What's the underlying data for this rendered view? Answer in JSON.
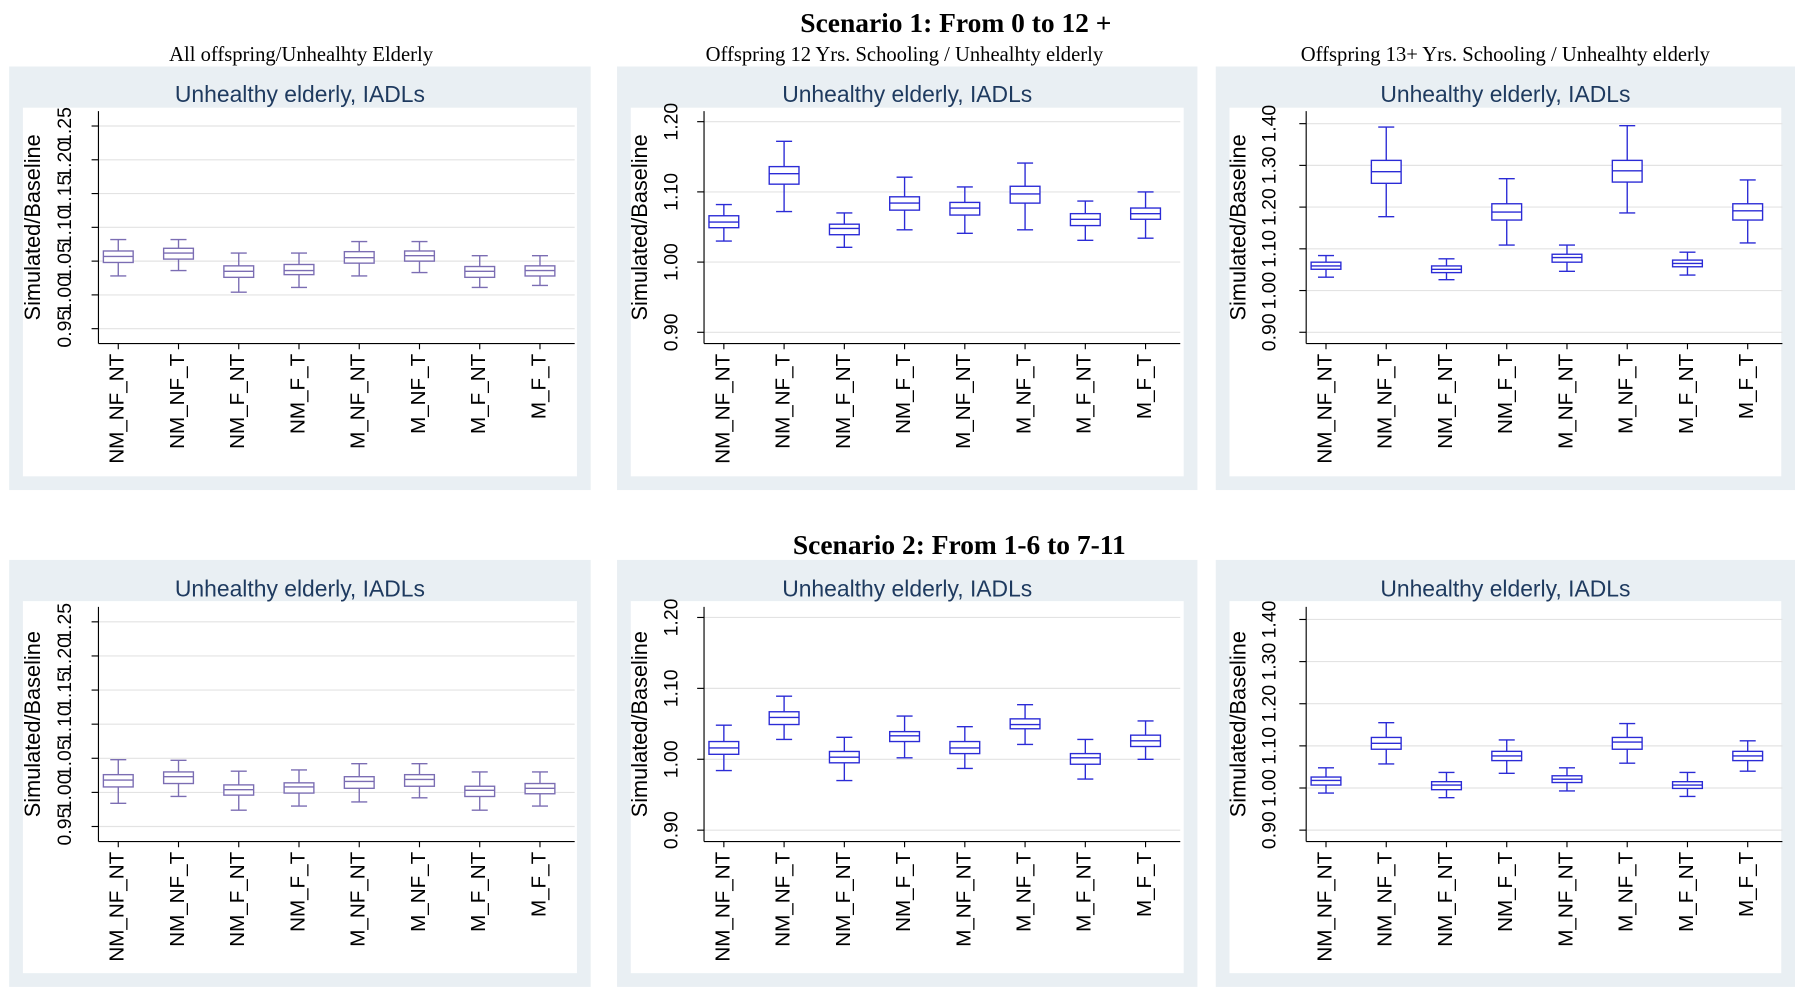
{
  "figure": {
    "scenario_titles": [
      "Scenario 1: From 0 to 12 +",
      "Scenario 2: From 1-6 to 7-11"
    ],
    "column_titles": [
      "All offspring/Unhealhty Elderly",
      "Offspring 12 Yrs. Schooling / Unhealhty elderly",
      "Offspring 13+ Yrs. Schooling / Unhealhty elderly"
    ]
  },
  "chart_data": [
    {
      "type": "box",
      "title": "Unhealthy elderly, IADLs",
      "y_label": "Simulated/Baseline",
      "color": "#7b6db3",
      "grid": true,
      "categories": [
        "NM_NF_NT",
        "NM_NF_T",
        "NM_F_NT",
        "NM_F_T",
        "M_NF_NT",
        "M_NF_T",
        "M_F_NT",
        "M_F_T"
      ],
      "ylim": [
        0.928,
        1.272
      ],
      "yticks": [
        0.95,
        {
          "value": 1,
          "label": "1.00"
        },
        1.05,
        {
          "value": 1.1,
          "label": "1.10"
        },
        1.15,
        {
          "value": 1.2,
          "label": "1.20"
        },
        1.25
      ],
      "whisker_low": [
        1.028,
        1.036,
        1.004,
        1.011,
        1.028,
        1.033,
        1.011,
        1.014
      ],
      "q1": [
        1.048,
        1.053,
        1.026,
        1.03,
        1.047,
        1.05,
        1.026,
        1.028
      ],
      "median": [
        1.057,
        1.062,
        1.035,
        1.036,
        1.055,
        1.058,
        1.035,
        1.036
      ],
      "q3": [
        1.065,
        1.069,
        1.043,
        1.045,
        1.064,
        1.065,
        1.042,
        1.043
      ],
      "whisker_high": [
        1.082,
        1.082,
        1.062,
        1.062,
        1.079,
        1.079,
        1.058,
        1.058
      ]
    },
    {
      "type": "box",
      "title": "Unhealthy elderly, IADLs",
      "y_label": "Simulated/Baseline",
      "color": "#2b2bd6",
      "grid": true,
      "categories": [
        "NM_NF_NT",
        "NM_NF_T",
        "NM_F_NT",
        "NM_F_T",
        "M_NF_NT",
        "M_NF_T",
        "M_F_NT",
        "M_F_T"
      ],
      "ylim": [
        0.884,
        1.215
      ],
      "yticks": [
        {
          "value": 0.9,
          "label": "0.90"
        },
        {
          "value": 1,
          "label": "1.00"
        },
        {
          "value": 1.1,
          "label": "1.10"
        },
        {
          "value": 1.2,
          "label": "1.20"
        }
      ],
      "whisker_low": [
        1.03,
        1.072,
        1.021,
        1.046,
        1.041,
        1.046,
        1.031,
        1.034
      ],
      "q1": [
        1.049,
        1.111,
        1.039,
        1.074,
        1.067,
        1.084,
        1.052,
        1.061
      ],
      "median": [
        1.057,
        1.126,
        1.048,
        1.084,
        1.077,
        1.097,
        1.061,
        1.069
      ],
      "q3": [
        1.066,
        1.136,
        1.054,
        1.093,
        1.085,
        1.108,
        1.069,
        1.077
      ],
      "whisker_high": [
        1.082,
        1.172,
        1.07,
        1.121,
        1.107,
        1.141,
        1.087,
        1.1
      ]
    },
    {
      "type": "box",
      "title": "Unhealthy elderly, IADLs",
      "y_label": "Simulated/Baseline",
      "color": "#2b2bd6",
      "grid": true,
      "categories": [
        "NM_NF_NT",
        "NM_NF_T",
        "NM_F_NT",
        "NM_F_T",
        "M_NF_NT",
        "M_NF_T",
        "M_F_NT",
        "M_F_T"
      ],
      "ylim": [
        0.873,
        1.43
      ],
      "yticks": [
        {
          "value": 0.9,
          "label": "0.90"
        },
        {
          "value": 1,
          "label": "1.00"
        },
        {
          "value": 1.1,
          "label": "1.10"
        },
        {
          "value": 1.2,
          "label": "1.20"
        },
        {
          "value": 1.3,
          "label": "1.30"
        },
        {
          "value": 1.4,
          "label": "1.40"
        }
      ],
      "whisker_low": [
        1.032,
        1.177,
        1.026,
        1.109,
        1.046,
        1.186,
        1.037,
        1.114
      ],
      "q1": [
        1.051,
        1.257,
        1.043,
        1.169,
        1.068,
        1.26,
        1.057,
        1.169
      ],
      "median": [
        1.059,
        1.285,
        1.051,
        1.188,
        1.079,
        1.287,
        1.065,
        1.191
      ],
      "q3": [
        1.068,
        1.312,
        1.059,
        1.208,
        1.087,
        1.312,
        1.073,
        1.208
      ],
      "whisker_high": [
        1.084,
        1.392,
        1.076,
        1.268,
        1.109,
        1.395,
        1.092,
        1.265
      ]
    },
    {
      "type": "box",
      "title": "Unhealthy elderly, IADLs",
      "y_label": "Simulated/Baseline",
      "color": "#7b6db3",
      "grid": true,
      "categories": [
        "NM_NF_NT",
        "NM_NF_T",
        "NM_F_NT",
        "NM_F_T",
        "M_NF_NT",
        "M_NF_T",
        "M_F_NT",
        "M_F_T"
      ],
      "ylim": [
        0.928,
        1.272
      ],
      "yticks": [
        0.95,
        {
          "value": 1,
          "label": "1.00"
        },
        1.05,
        {
          "value": 1.1,
          "label": "1.10"
        },
        1.15,
        {
          "value": 1.2,
          "label": "1.20"
        },
        1.25
      ],
      "whisker_low": [
        0.984,
        0.994,
        0.974,
        0.98,
        0.986,
        0.992,
        0.974,
        0.98
      ],
      "q1": [
        1.008,
        1.013,
        0.996,
        0.999,
        1.006,
        1.009,
        0.994,
        0.998
      ],
      "median": [
        1.018,
        1.023,
        1.004,
        1.008,
        1.016,
        1.019,
        1.003,
        1.006
      ],
      "q3": [
        1.026,
        1.03,
        1.011,
        1.014,
        1.023,
        1.026,
        1.009,
        1.013
      ],
      "whisker_high": [
        1.048,
        1.047,
        1.031,
        1.033,
        1.042,
        1.042,
        1.03,
        1.03
      ]
    },
    {
      "type": "box",
      "title": "Unhealthy elderly, IADLs",
      "y_label": "Simulated/Baseline",
      "color": "#2b2bd6",
      "grid": true,
      "categories": [
        "NM_NF_NT",
        "NM_NF_T",
        "NM_F_NT",
        "NM_F_T",
        "M_NF_NT",
        "M_NF_T",
        "M_F_NT",
        "M_F_T"
      ],
      "ylim": [
        0.884,
        1.215
      ],
      "yticks": [
        {
          "value": 0.9,
          "label": "0.90"
        },
        {
          "value": 1,
          "label": "1.00"
        },
        {
          "value": 1.1,
          "label": "1.10"
        },
        {
          "value": 1.2,
          "label": "1.20"
        }
      ],
      "whisker_low": [
        0.984,
        1.028,
        0.97,
        1.002,
        0.987,
        1.021,
        0.972,
        1.0
      ],
      "q1": [
        1.007,
        1.049,
        0.995,
        1.025,
        1.008,
        1.043,
        0.993,
        1.018
      ],
      "median": [
        1.016,
        1.059,
        1.003,
        1.033,
        1.016,
        1.049,
        1.002,
        1.026
      ],
      "q3": [
        1.025,
        1.067,
        1.011,
        1.039,
        1.025,
        1.057,
        1.008,
        1.034
      ],
      "whisker_high": [
        1.048,
        1.089,
        1.031,
        1.061,
        1.046,
        1.077,
        1.028,
        1.054
      ]
    },
    {
      "type": "box",
      "title": "Unhealthy elderly, IADLs",
      "y_label": "Simulated/Baseline",
      "color": "#2b2bd6",
      "grid": true,
      "categories": [
        "NM_NF_NT",
        "NM_NF_T",
        "NM_F_NT",
        "NM_F_T",
        "M_NF_NT",
        "M_NF_T",
        "M_F_NT",
        "M_F_T"
      ],
      "ylim": [
        0.873,
        1.43
      ],
      "yticks": [
        {
          "value": 0.9,
          "label": "0.90"
        },
        {
          "value": 1,
          "label": "1.00"
        },
        {
          "value": 1.1,
          "label": "1.10"
        },
        {
          "value": 1.2,
          "label": "1.20"
        },
        {
          "value": 1.3,
          "label": "1.30"
        },
        {
          "value": 1.4,
          "label": "1.40"
        }
      ],
      "whisker_low": [
        0.988,
        1.057,
        0.977,
        1.035,
        0.993,
        1.059,
        0.98,
        1.04
      ],
      "q1": [
        1.007,
        1.092,
        0.996,
        1.065,
        1.013,
        1.092,
        0.999,
        1.065
      ],
      "median": [
        1.018,
        1.106,
        1.007,
        1.076,
        1.021,
        1.109,
        1.007,
        1.076
      ],
      "q3": [
        1.026,
        1.12,
        1.015,
        1.087,
        1.029,
        1.12,
        1.015,
        1.087
      ],
      "whisker_high": [
        1.048,
        1.155,
        1.037,
        1.114,
        1.048,
        1.153,
        1.037,
        1.112
      ]
    }
  ]
}
